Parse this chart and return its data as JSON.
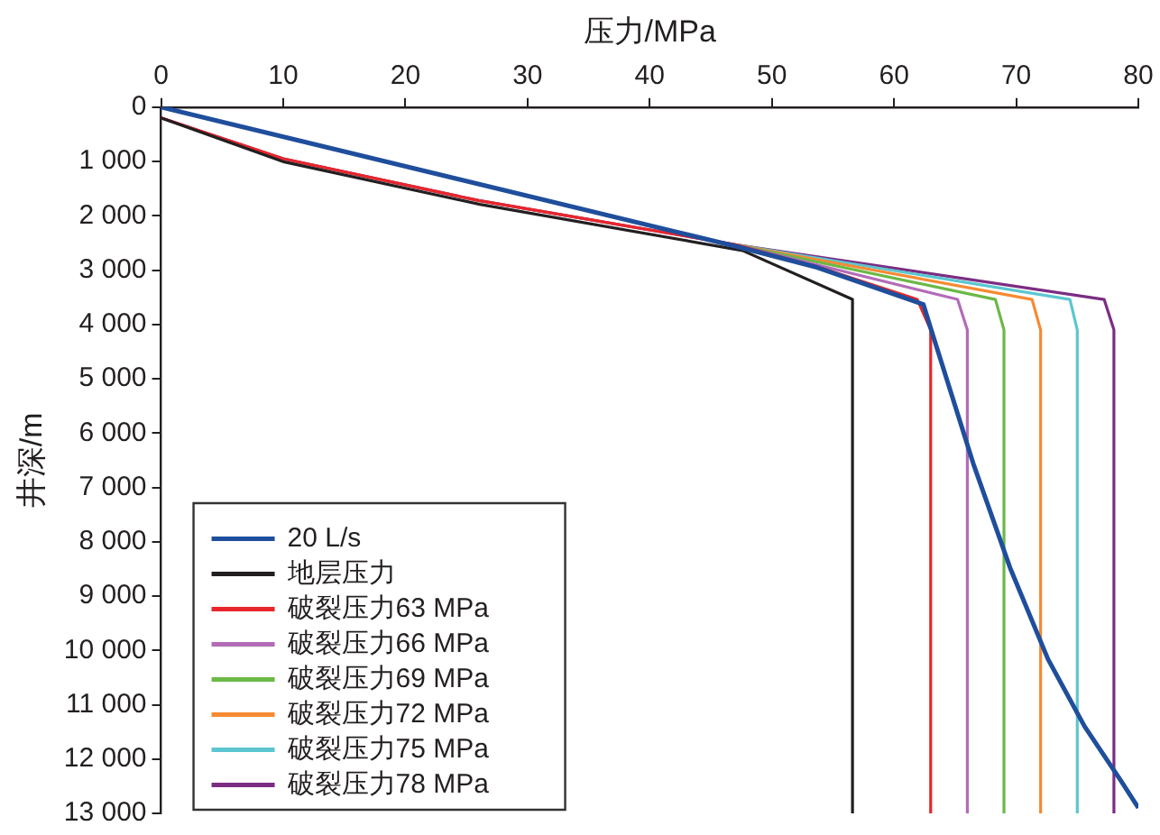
{
  "chart_data": {
    "type": "line",
    "xlabel": "压力/MPa",
    "ylabel": "井深/m",
    "xlim": [
      0,
      80
    ],
    "xticks": [
      0,
      10,
      20,
      30,
      40,
      50,
      60,
      70,
      80
    ],
    "ylim": [
      13000,
      0
    ],
    "yticks": [
      {
        "value": 0,
        "label": "0"
      },
      {
        "value": 1000,
        "label": "1 000"
      },
      {
        "value": 2000,
        "label": "2 000"
      },
      {
        "value": 3000,
        "label": "3 000"
      },
      {
        "value": 4000,
        "label": "4 000"
      },
      {
        "value": 5000,
        "label": "5 000"
      },
      {
        "value": 6000,
        "label": "6 000"
      },
      {
        "value": 7000,
        "label": "7 000"
      },
      {
        "value": 8000,
        "label": "8 000"
      },
      {
        "value": 9000,
        "label": "9 000"
      },
      {
        "value": 10000,
        "label": "10 000"
      },
      {
        "value": 11000,
        "label": "11 000"
      },
      {
        "value": 12000,
        "label": "12 000"
      },
      {
        "value": 13000,
        "label": "13 000"
      }
    ],
    "grid": false,
    "legend": "bottom left",
    "marker": "none",
    "line_style": "solid",
    "series": [
      {
        "name": "20 L/s",
        "color": "#1f4e9c",
        "x": [
          0,
          47,
          53.7,
          62.4,
          63.2,
          66.5,
          69.5,
          72.6,
          75.6,
          78.6,
          80
        ],
        "values": [
          0,
          2560,
          2950,
          3630,
          4210,
          6570,
          8480,
          10160,
          11400,
          12410,
          12900
        ]
      },
      {
        "name": "地层压力",
        "color": "#231f20",
        "x": [
          0,
          10.1,
          26.1,
          47.6,
          56.6,
          56.6
        ],
        "values": [
          200,
          1010,
          1790,
          2640,
          3540,
          13000
        ]
      },
      {
        "name": "破裂压力63 MPa",
        "color": "#e8262b",
        "x": [
          0,
          10,
          26,
          47,
          54,
          61.9,
          63,
          63
        ],
        "values": [
          200,
          950,
          1720,
          2530,
          2960,
          3540,
          4100,
          13000
        ]
      },
      {
        "name": "破裂压力66 MPa",
        "color": "#b36bb8",
        "x": [
          47,
          65.2,
          66,
          66
        ],
        "values": [
          2530,
          3540,
          4100,
          13000
        ]
      },
      {
        "name": "破裂压力69 MPa",
        "color": "#6ab846",
        "x": [
          47,
          68.3,
          69,
          69
        ],
        "values": [
          2530,
          3540,
          4100,
          13000
        ]
      },
      {
        "name": "破裂压力72 MPa",
        "color": "#f68a33",
        "x": [
          47,
          71.3,
          72,
          72
        ],
        "values": [
          2530,
          3540,
          4100,
          13000
        ]
      },
      {
        "name": "破裂压力75 MPa",
        "color": "#5bc6d0",
        "x": [
          47,
          74.4,
          75,
          75
        ],
        "values": [
          2530,
          3540,
          4100,
          13000
        ]
      },
      {
        "name": "破裂压力78 MPa",
        "color": "#7b2d83",
        "x": [
          0,
          10,
          26,
          47,
          77.2,
          78,
          78
        ],
        "values": [
          200,
          950,
          1720,
          2530,
          3540,
          4100,
          13000
        ]
      }
    ]
  }
}
